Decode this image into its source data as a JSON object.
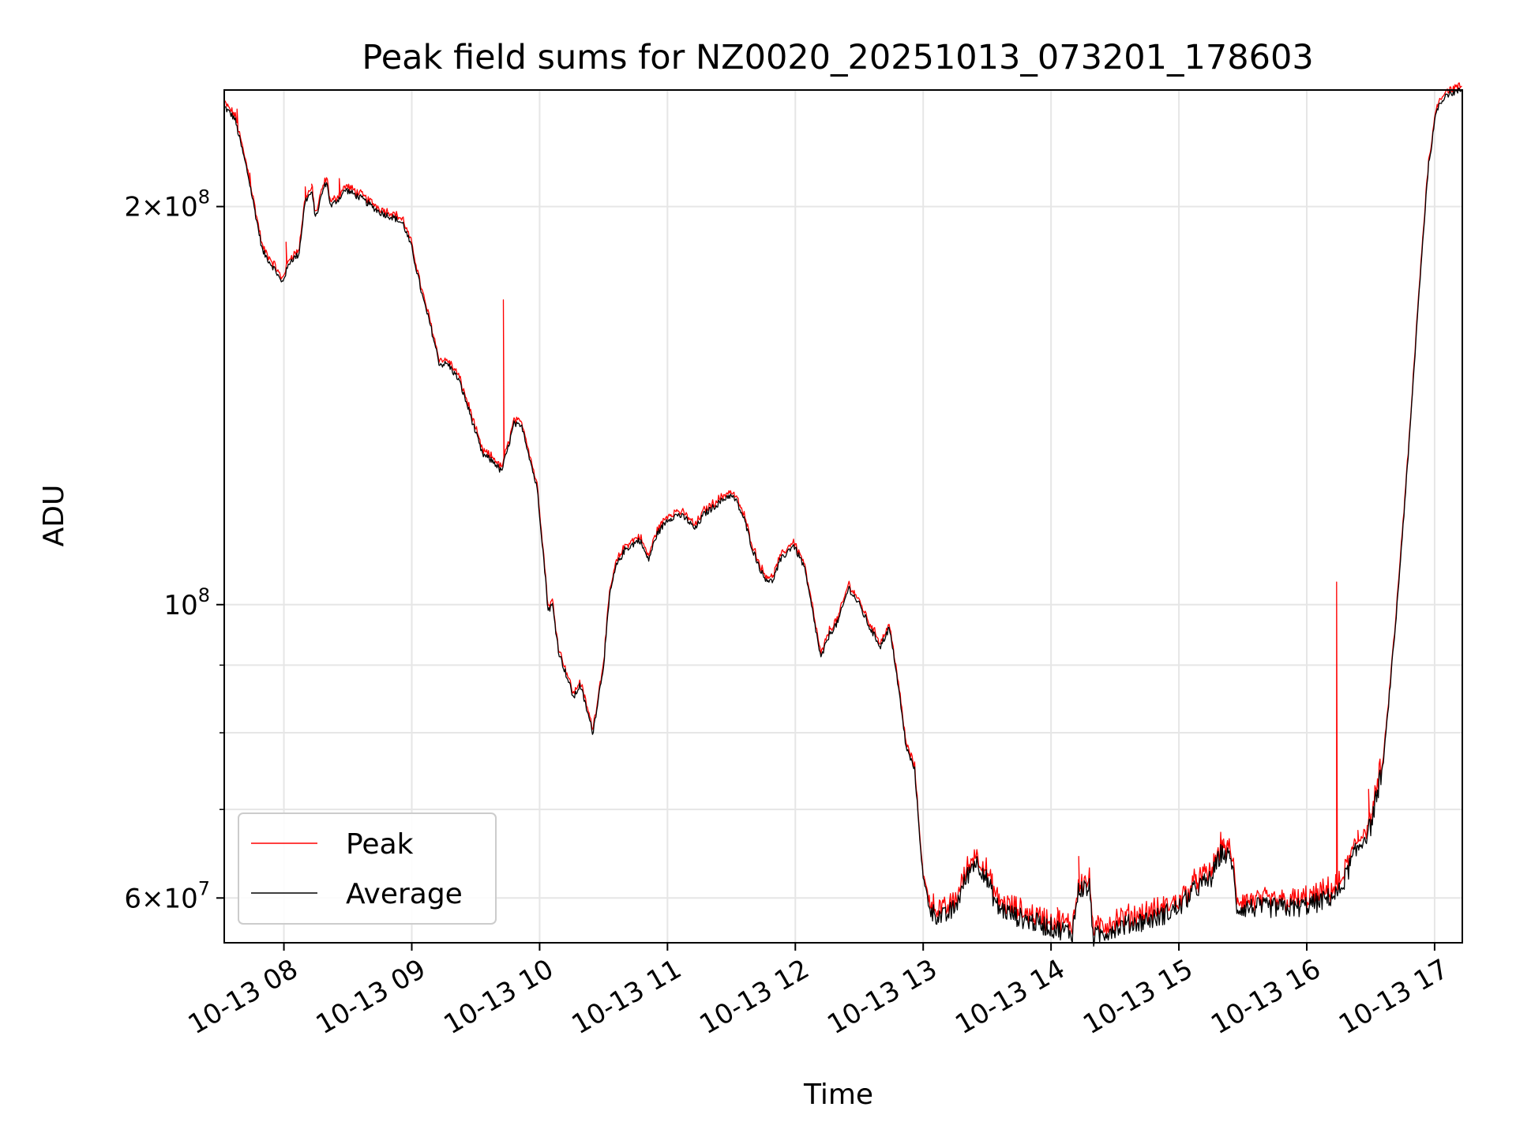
{
  "chart_data": {
    "type": "line",
    "title": "Peak field sums for NZ0020_20251013_073201_178603",
    "xlabel": "Time",
    "ylabel": "ADU",
    "y_scale": "log",
    "x_range": [
      "2025-10-13 07:32",
      "2025-10-13 17:13"
    ],
    "ylim": [
      55500000,
      245000000
    ],
    "grid": true,
    "legend_position": "lower-left",
    "x_ticks": [
      {
        "t": "2025-10-13 08:00",
        "label": "10-13 08"
      },
      {
        "t": "2025-10-13 09:00",
        "label": "10-13 09"
      },
      {
        "t": "2025-10-13 10:00",
        "label": "10-13 10"
      },
      {
        "t": "2025-10-13 11:00",
        "label": "10-13 11"
      },
      {
        "t": "2025-10-13 12:00",
        "label": "10-13 12"
      },
      {
        "t": "2025-10-13 13:00",
        "label": "10-13 13"
      },
      {
        "t": "2025-10-13 14:00",
        "label": "10-13 14"
      },
      {
        "t": "2025-10-13 15:00",
        "label": "10-13 15"
      },
      {
        "t": "2025-10-13 16:00",
        "label": "10-13 16"
      },
      {
        "t": "2025-10-13 17:00",
        "label": "10-13 17"
      }
    ],
    "y_major_ticks": [
      {
        "value": 200000000,
        "mant": "2",
        "exp": "8"
      },
      {
        "value": 100000000,
        "mant": "",
        "exp": "8"
      },
      {
        "value": 60000000,
        "mant": "6",
        "exp": "7"
      }
    ],
    "y_minor_gridlines": [
      70000000,
      80000000,
      90000000
    ],
    "series": [
      {
        "name": "Average",
        "color": "#000000",
        "points": [
          [
            "2025-10-13 07:32",
            238000000.0
          ],
          [
            "2025-10-13 07:37",
            233000000.0
          ],
          [
            "2025-10-13 07:43",
            212000000.0
          ],
          [
            "2025-10-13 07:50",
            185000000.0
          ],
          [
            "2025-10-13 07:56",
            179000000.0
          ],
          [
            "2025-10-13 07:59",
            175000000.0
          ],
          [
            "2025-10-13 08:03",
            182000000.0
          ],
          [
            "2025-10-13 08:07",
            184000000.0
          ],
          [
            "2025-10-13 08:10",
            202000000.0
          ],
          [
            "2025-10-13 08:13",
            205000000.0
          ],
          [
            "2025-10-13 08:15",
            196000000.0
          ],
          [
            "2025-10-13 08:18",
            205000000.0
          ],
          [
            "2025-10-13 08:20",
            209000000.0
          ],
          [
            "2025-10-13 08:22",
            200000000.0
          ],
          [
            "2025-10-13 08:26",
            203000000.0
          ],
          [
            "2025-10-13 08:29",
            206000000.0
          ],
          [
            "2025-10-13 08:36",
            203000000.0
          ],
          [
            "2025-10-13 08:45",
            198000000.0
          ],
          [
            "2025-10-13 08:52",
            196000000.0
          ],
          [
            "2025-10-13 08:56",
            194000000.0
          ],
          [
            "2025-10-13 09:00",
            186000000.0
          ],
          [
            "2025-10-13 09:05",
            171000000.0
          ],
          [
            "2025-10-13 09:09",
            162000000.0
          ],
          [
            "2025-10-13 09:13",
            152000000.0
          ],
          [
            "2025-10-13 09:17",
            152000000.0
          ],
          [
            "2025-10-13 09:22",
            148000000.0
          ],
          [
            "2025-10-13 09:27",
            140000000.0
          ],
          [
            "2025-10-13 09:33",
            130000000.0
          ],
          [
            "2025-10-13 09:39",
            128000000.0
          ],
          [
            "2025-10-13 09:42",
            126000000.0
          ],
          [
            "2025-10-13 09:45",
            131000000.0
          ],
          [
            "2025-10-13 09:48",
            137000000.0
          ],
          [
            "2025-10-13 09:52",
            136000000.0
          ],
          [
            "2025-10-13 09:59",
            122000000.0
          ],
          [
            "2025-10-13 10:02",
            108000000.0
          ],
          [
            "2025-10-13 10:04",
            99000000.0
          ],
          [
            "2025-10-13 10:06",
            100000000.0
          ],
          [
            "2025-10-13 10:09",
            92000000.0
          ],
          [
            "2025-10-13 10:13",
            88000000.0
          ],
          [
            "2025-10-13 10:16",
            85000000.0
          ],
          [
            "2025-10-13 10:19",
            87000000.0
          ],
          [
            "2025-10-13 10:25",
            80000000.0
          ],
          [
            "2025-10-13 10:30",
            90000000.0
          ],
          [
            "2025-10-13 10:33",
            102000000.0
          ],
          [
            "2025-10-13 10:36",
            107000000.0
          ],
          [
            "2025-10-13 10:40",
            110000000.0
          ],
          [
            "2025-10-13 10:47",
            112000000.0
          ],
          [
            "2025-10-13 10:51",
            108000000.0
          ],
          [
            "2025-10-13 10:55",
            113000000.0
          ],
          [
            "2025-10-13 11:00",
            116000000.0
          ],
          [
            "2025-10-13 11:05",
            117000000.0
          ],
          [
            "2025-10-13 11:09",
            116000000.0
          ],
          [
            "2025-10-13 11:13",
            114000000.0
          ],
          [
            "2025-10-13 11:17",
            117000000.0
          ],
          [
            "2025-10-13 11:23",
            119000000.0
          ],
          [
            "2025-10-13 11:29",
            121000000.0
          ],
          [
            "2025-10-13 11:32",
            120000000.0
          ],
          [
            "2025-10-13 11:36",
            116000000.0
          ],
          [
            "2025-10-13 11:40",
            110000000.0
          ],
          [
            "2025-10-13 11:45",
            105000000.0
          ],
          [
            "2025-10-13 11:49",
            104000000.0
          ],
          [
            "2025-10-13 11:53",
            108000000.0
          ],
          [
            "2025-10-13 11:59",
            111000000.0
          ],
          [
            "2025-10-13 12:04",
            107000000.0
          ],
          [
            "2025-10-13 12:08",
            99000000.0
          ],
          [
            "2025-10-13 12:12",
            91000000.0
          ],
          [
            "2025-10-13 12:16",
            95000000.0
          ],
          [
            "2025-10-13 12:20",
            97000000.0
          ],
          [
            "2025-10-13 12:25",
            103000000.0
          ],
          [
            "2025-10-13 12:30",
            100000000.0
          ],
          [
            "2025-10-13 12:35",
            96000000.0
          ],
          [
            "2025-10-13 12:40",
            93000000.0
          ],
          [
            "2025-10-13 12:44",
            96000000.0
          ],
          [
            "2025-10-13 12:47",
            90000000.0
          ],
          [
            "2025-10-13 12:52",
            78000000.0
          ],
          [
            "2025-10-13 12:56",
            75000000.0
          ],
          [
            "2025-10-13 12:58",
            68000000.0
          ],
          [
            "2025-10-13 13:00",
            62000000.0
          ],
          [
            "2025-10-13 13:04",
            58500000.0
          ],
          [
            "2025-10-13 13:10",
            58000000.0
          ],
          [
            "2025-10-13 13:15",
            59000000.0
          ],
          [
            "2025-10-13 13:20",
            62000000.0
          ],
          [
            "2025-10-13 13:24",
            64000000.0
          ],
          [
            "2025-10-13 13:28",
            63000000.0
          ],
          [
            "2025-10-13 13:35",
            59000000.0
          ],
          [
            "2025-10-13 13:45",
            58000000.0
          ],
          [
            "2025-10-13 14:00",
            57000000.0
          ],
          [
            "2025-10-13 14:10",
            56500000.0
          ],
          [
            "2025-10-13 14:13",
            61000000.0
          ],
          [
            "2025-10-13 14:18",
            61000000.0
          ],
          [
            "2025-10-13 14:20",
            56000000.0
          ],
          [
            "2025-10-13 14:30",
            57000000.0
          ],
          [
            "2025-10-13 14:40",
            57500000.0
          ],
          [
            "2025-10-13 14:50",
            58000000.0
          ],
          [
            "2025-10-13 15:00",
            59000000.0
          ],
          [
            "2025-10-13 15:08",
            61000000.0
          ],
          [
            "2025-10-13 15:15",
            62000000.0
          ],
          [
            "2025-10-13 15:20",
            65000000.0
          ],
          [
            "2025-10-13 15:25",
            64000000.0
          ],
          [
            "2025-10-13 15:27",
            59000000.0
          ],
          [
            "2025-10-13 15:35",
            59000000.0
          ],
          [
            "2025-10-13 15:45",
            59000000.0
          ],
          [
            "2025-10-13 15:55",
            59000000.0
          ],
          [
            "2025-10-13 16:05",
            59500000.0
          ],
          [
            "2025-10-13 16:15",
            60500000.0
          ],
          [
            "2025-10-13 16:22",
            64500000.0
          ],
          [
            "2025-10-13 16:30",
            68000000.0
          ],
          [
            "2025-10-13 16:36",
            76000000.0
          ],
          [
            "2025-10-13 16:42",
            98000000.0
          ],
          [
            "2025-10-13 16:48",
            132000000.0
          ],
          [
            "2025-10-13 16:53",
            175000000.0
          ],
          [
            "2025-10-13 16:57",
            214000000.0
          ],
          [
            "2025-10-13 17:01",
            237000000.0
          ],
          [
            "2025-10-13 17:05",
            243000000.0
          ],
          [
            "2025-10-13 17:13",
            245000000.0
          ]
        ]
      },
      {
        "name": "Peak",
        "color": "#ff0000",
        "spikes": [
          [
            "2025-10-13 07:38",
            237000000.0
          ],
          [
            "2025-10-13 07:44",
            212000000.0
          ],
          [
            "2025-10-13 08:01",
            188000000.0
          ],
          [
            "2025-10-13 08:10",
            207000000.0
          ],
          [
            "2025-10-13 08:13",
            208000000.0
          ],
          [
            "2025-10-13 08:26",
            210000000.0
          ],
          [
            "2025-10-13 09:43",
            170000000.0
          ],
          [
            "2025-10-13 14:13",
            64500000.0
          ],
          [
            "2025-10-13 14:03",
            59000000.0
          ],
          [
            "2025-10-13 15:21",
            66500000.0
          ],
          [
            "2025-10-13 15:08",
            62500000.0
          ],
          [
            "2025-10-13 16:14",
            104000000.0
          ],
          [
            "2025-10-13 16:29",
            72500000.0
          ],
          [
            "2025-10-13 16:24",
            67500000.0
          ]
        ]
      }
    ]
  }
}
